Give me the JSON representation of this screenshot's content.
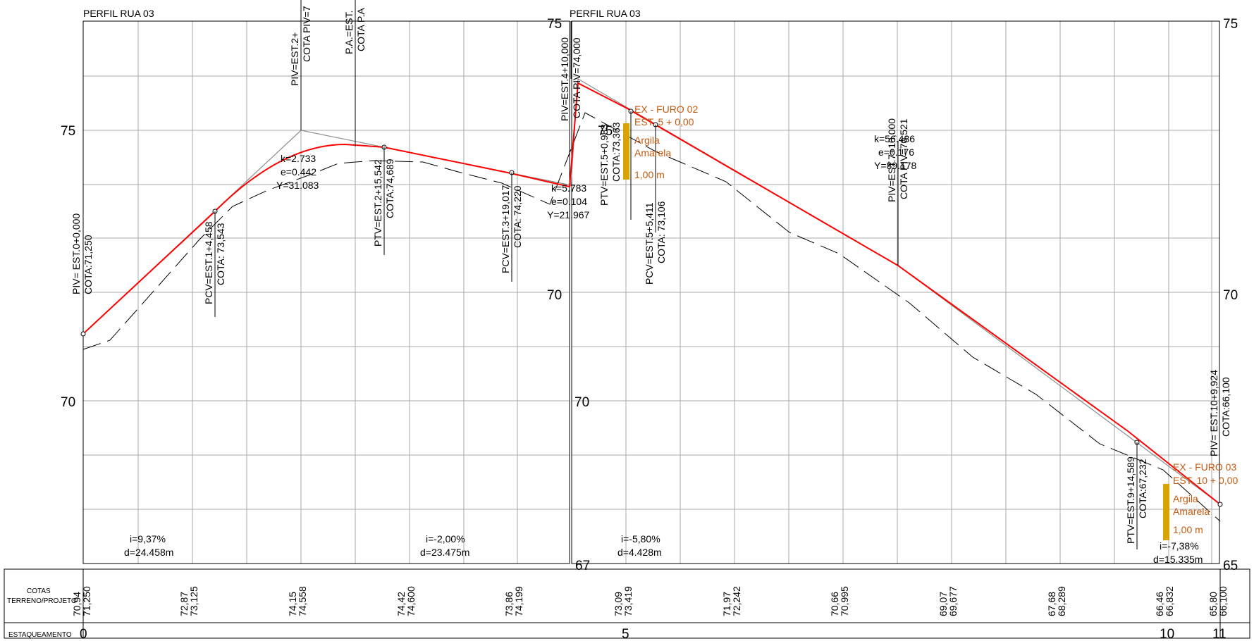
{
  "titles": [
    "PERFIL RUA 03",
    "PERFIL RUA 03"
  ],
  "colors": {
    "project_line": "#ff0000",
    "terrain_line": "#000000",
    "tangent_line": "#8c8c8c",
    "boring": "#d9a300",
    "boring_text": "#c55a11"
  },
  "left_axis": [
    "75",
    "70"
  ],
  "center_axis_a": [
    "75",
    "70",
    "67"
  ],
  "center_axis_b": [
    "75",
    "70"
  ],
  "right_axis": [
    "75",
    "70",
    "65"
  ],
  "vertical_labels": [
    [
      "PIV= EST.0+0,000",
      "COTA:71,250"
    ],
    [
      "PCV=EST.1+4,458",
      "COTA: 73,543"
    ],
    [
      "PIV=EST.2+",
      "COTA PIV=7"
    ],
    [
      "P.A.=EST.",
      "COTA P.A"
    ],
    [
      "PTV=EST.2+15,542",
      "COTA:74,689"
    ],
    [
      "PCV=EST.3+19,017",
      "COTA: 74,220"
    ],
    [
      "PIV=EST.4+10,000",
      "COTA PIV=74,000"
    ],
    [
      "PTV=EST.5+0,983",
      "COTA:73,363"
    ],
    [
      "PCV=EST.5+5,411",
      "COTA: 73,106"
    ],
    [
      "PIV=EST.7+10,000",
      "COTA PIV=70,521"
    ],
    [
      "PTV=EST.9+14,589",
      "COTA:67,232"
    ],
    [
      "PIV= EST.10+9,924",
      "COTA:66,100"
    ]
  ],
  "curves": [
    [
      "k=2.733",
      "e=0.442",
      "Y=31.083"
    ],
    [
      "k=5.783",
      "e=0.104",
      "Y=21.967"
    ],
    [
      "k=56.486",
      "e=0.176",
      "Y=89.178"
    ]
  ],
  "grades": [
    [
      "i=9,37%",
      "d=24.458m"
    ],
    [
      "i=-2,00%",
      "d=23.475m"
    ],
    [
      "i=-5,80%",
      "d=4.428m"
    ],
    [
      "i=-7,38%",
      "d=15.335m"
    ]
  ],
  "borings": [
    {
      "title": "EX - FURO 02",
      "station": "EST. 5 + 0,00",
      "material": [
        "Argila",
        "Amarela"
      ],
      "depth": "1,00 m"
    },
    {
      "title": "EX - FURO 03",
      "station": "EST. 10 + 0,00",
      "material": [
        "Argila",
        "Amarela"
      ],
      "depth": "1,00 m"
    }
  ],
  "table": {
    "row1_label": [
      "COTAS",
      "TERRENO/PROJETO"
    ],
    "row2_label": "ESTAQUEAMENTO",
    "cotas": [
      [
        "70,94",
        "71,250"
      ],
      [
        "72,87",
        "73,125"
      ],
      [
        "74,15",
        "74,558"
      ],
      [
        "74,42",
        "74,600"
      ],
      [
        "73,86",
        "74,199"
      ],
      [
        "73,09",
        "73,419"
      ],
      [
        "71,97",
        "72,242"
      ],
      [
        "70,66",
        "70,995"
      ],
      [
        "69,07",
        "69,677"
      ],
      [
        "67,68",
        "68,289"
      ],
      [
        "66,46",
        "66,832"
      ],
      [
        "65,80",
        "66,100"
      ]
    ],
    "stations": [
      "0",
      "5",
      "10",
      "11"
    ]
  }
}
